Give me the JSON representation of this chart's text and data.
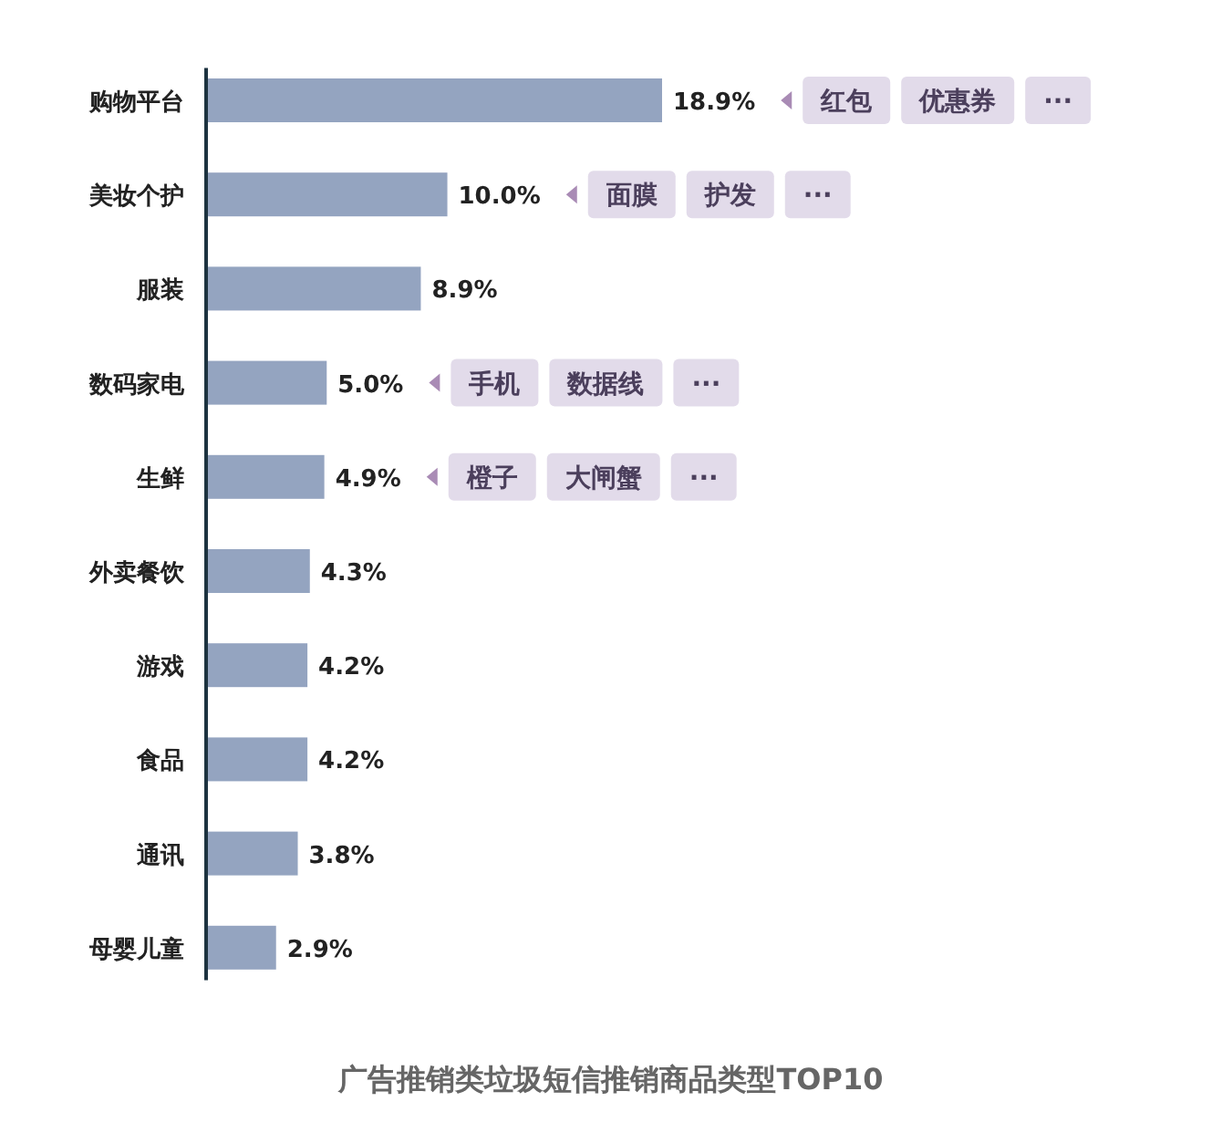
{
  "chart_data": {
    "type": "bar",
    "orientation": "horizontal",
    "title": "广告推销类垃圾短信推销商品类型TOP10",
    "categories": [
      "购物平台",
      "美妆个护",
      "服装",
      "数码家电",
      "生鲜",
      "外卖餐饮",
      "游戏",
      "食品",
      "通讯",
      "母婴儿童"
    ],
    "values": [
      18.9,
      10.0,
      8.9,
      5.0,
      4.9,
      4.3,
      4.2,
      4.2,
      3.8,
      2.9
    ],
    "value_labels": [
      "18.9%",
      "10.0%",
      "8.9%",
      "5.0%",
      "4.9%",
      "4.3%",
      "4.2%",
      "4.2%",
      "3.8%",
      "2.9%"
    ],
    "color": "#94a4c0",
    "annotations": [
      "红包",
      "优惠券",
      "···",
      "面膜",
      "护发",
      "···",
      "手机",
      "数据线",
      "···",
      "橙子",
      "大闸蟹",
      "···"
    ]
  }
}
